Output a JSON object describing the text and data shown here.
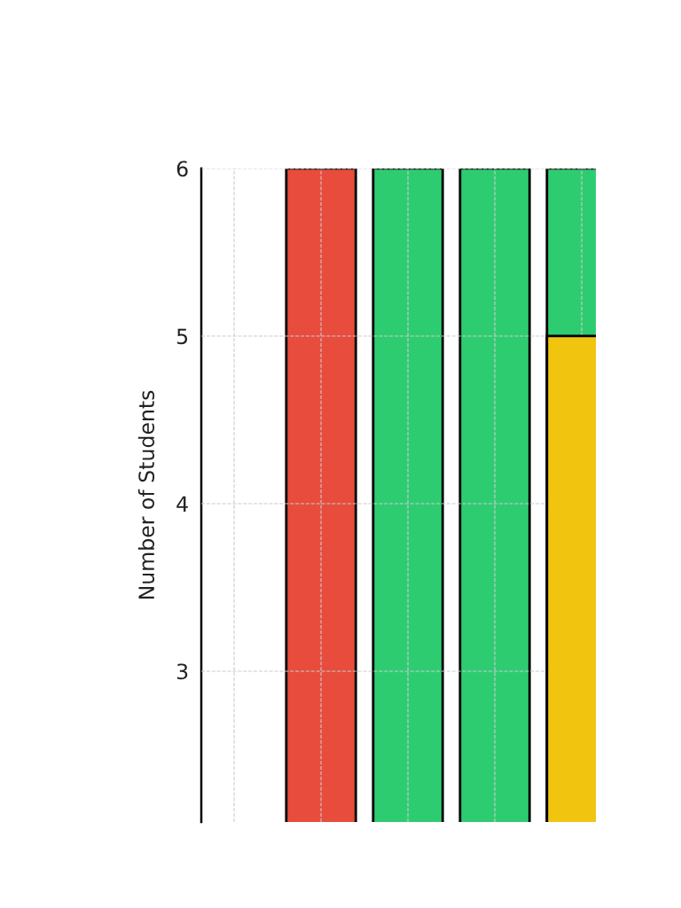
{
  "chart_data": {
    "type": "bar",
    "ylabel": "Number of Students",
    "categories": [
      null,
      null,
      null,
      null,
      null
    ],
    "series": [
      {
        "colors": [
          null,
          "#e74c3c",
          "#2ecc71",
          "#2ecc71",
          "#2ecc71"
        ],
        "values": [
          null,
          6,
          6,
          6,
          6
        ]
      },
      {
        "color": "#f1c40f",
        "values": [
          null,
          null,
          null,
          null,
          5
        ]
      }
    ],
    "ylim": [
      2.1,
      6
    ],
    "yticks": [
      3,
      4,
      5,
      6
    ],
    "grid": true,
    "tick_labels": "y"
  }
}
